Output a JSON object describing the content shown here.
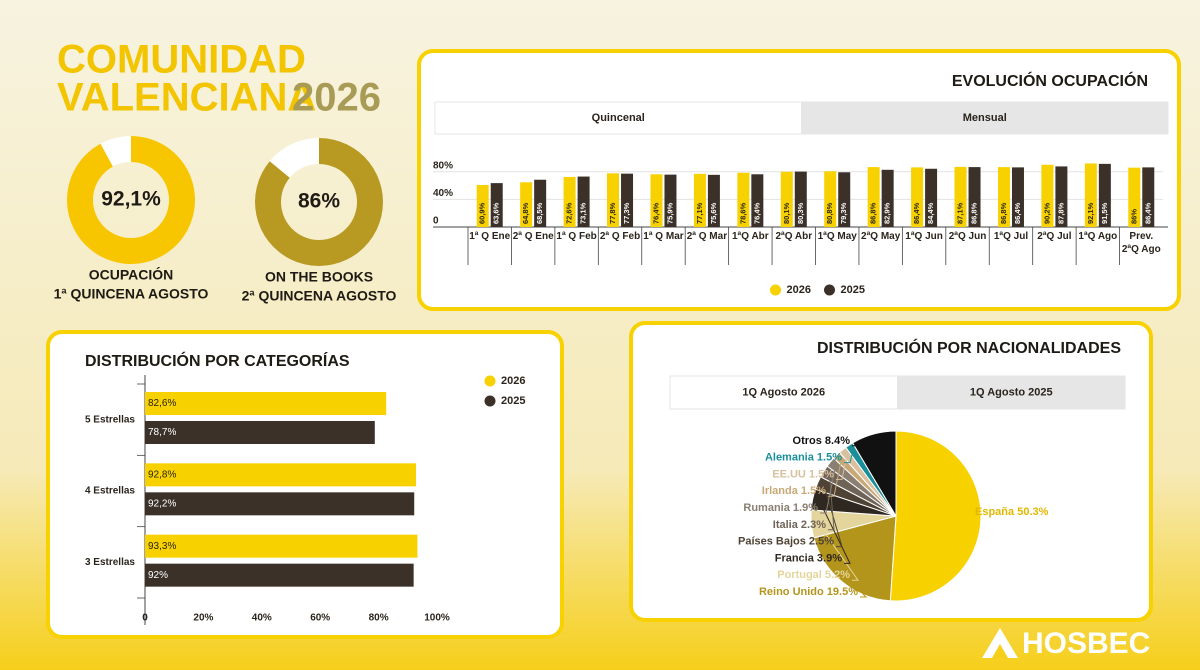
{
  "header": {
    "line1": "COMUNIDAD",
    "line2": "VALENCIANA",
    "year": "2026"
  },
  "chart_data": [
    {
      "type": "donut",
      "values": [
        92.1
      ],
      "value_labels": [
        "92,1%"
      ],
      "ylim": [
        0,
        100
      ],
      "color": "#f7c600",
      "caption": [
        "OCUPACIÓN",
        "1ª QUINCENA AGOSTO"
      ]
    },
    {
      "type": "donut",
      "values": [
        86
      ],
      "value_labels": [
        "86%"
      ],
      "ylim": [
        0,
        100
      ],
      "color": "#b89a22",
      "caption": [
        "ON THE BOOKS",
        "2ª QUINCENA AGOSTO"
      ]
    },
    {
      "type": "bar",
      "title": "EVOLUCIÓN OCUPACIÓN",
      "tabs": [
        "Quincenal",
        "Mensual"
      ],
      "categories": [
        "1ª Q Ene",
        "2ª Q Ene",
        "1ª Q Feb",
        "2ª Q Feb",
        "1ª Q Mar",
        "2ª Q Mar",
        "1ªQ Abr",
        "2ªQ Abr",
        "1ªQ May",
        "2ªQ May",
        "1ªQ Jun",
        "2ªQ Jun",
        "1ªQ Jul",
        "2ªQ Jul",
        "1ªQ Ago",
        "Prev. 2ªQ Ago"
      ],
      "series": [
        {
          "name": "2026",
          "color": "#f7d100",
          "values": [
            60.9,
            64.8,
            72.6,
            77.8,
            76.4,
            77.1,
            78.6,
            80.1,
            80.8,
            86.8,
            86.4,
            87.1,
            86.8,
            90.2,
            92.1,
            86
          ],
          "value_labels": [
            "60,9%",
            "64,8%",
            "72,6%",
            "77,8%",
            "76,4%",
            "77,1%",
            "78,6%",
            "80,1%",
            "80,8%",
            "86,8%",
            "86,4%",
            "87,1%",
            "86,8%",
            "90,2%",
            "92,1%",
            "86%"
          ]
        },
        {
          "name": "2025",
          "color": "#3b3129",
          "values": [
            63.6,
            68.5,
            73.1,
            77.3,
            75.9,
            75.6,
            76.4,
            80.3,
            79.3,
            82.9,
            84.4,
            86.8,
            86.4,
            87.8,
            91.5,
            86.4
          ],
          "value_labels": [
            "63,6%",
            "68,5%",
            "73,1%",
            "77,3%",
            "75,9%",
            "75,6%",
            "76,4%",
            "80,3%",
            "79,3%",
            "82,9%",
            "84,4%",
            "86,8%",
            "86,4%",
            "87,8%",
            "91,5%",
            "86,4%"
          ]
        }
      ],
      "ylim": [
        0,
        100
      ],
      "yticks": [
        0,
        {
          "value": 40,
          "label": "40%"
        },
        {
          "value": 80,
          "label": "80%"
        }
      ],
      "grid": true,
      "legend": "bottom"
    },
    {
      "type": "hbar",
      "title": "DISTRIBUCIÓN POR CATEGORÍAS",
      "categories": [
        "5 Estrellas",
        "4 Estrellas",
        "3 Estrellas"
      ],
      "series": [
        {
          "name": "2026",
          "color": "#f7d100",
          "values": [
            82.6,
            92.8,
            93.3
          ],
          "value_labels": [
            "82,6%",
            "92,8%",
            "93,3%"
          ]
        },
        {
          "name": "2025",
          "color": "#3b3129",
          "values": [
            78.7,
            92.2,
            92
          ],
          "value_labels": [
            "78,7%",
            "92,2%",
            "92%"
          ]
        }
      ],
      "xlim": [
        0,
        100
      ],
      "xticks": [
        0,
        {
          "value": 20,
          "label": "20%"
        },
        {
          "value": 40,
          "label": "40%"
        },
        {
          "value": 60,
          "label": "60%"
        },
        {
          "value": 80,
          "label": "80%"
        },
        {
          "value": 100,
          "label": "100%"
        }
      ],
      "legend": "right"
    },
    {
      "type": "pie",
      "title": "DISTRIBUCIÓN POR NACIONALIDADES",
      "tabs": [
        "1Q Agosto 2026",
        "1Q Agosto 2025"
      ],
      "categories": [
        "España",
        "Reino Unido",
        "Portugal",
        "Francia",
        "Países Bajos",
        "Italia",
        "Rumania",
        "Irlanda",
        "EE.UU",
        "Alemania",
        "Otros"
      ],
      "values": [
        50.3,
        19.5,
        5.2,
        3.9,
        2.5,
        2.3,
        1.9,
        1.5,
        1.5,
        1.5,
        8.4
      ],
      "value_labels": [
        "50.3%",
        "19.5%",
        "5.2%",
        "3.9%",
        "2.5%",
        "2.3%",
        "1.9%",
        "1.5%",
        "1.5%",
        "1.5%",
        "8.4%"
      ],
      "colors": [
        "#f7d100",
        "#b4951c",
        "#e3d59b",
        "#2f2820",
        "#4f4335",
        "#6e6356",
        "#8a7f72",
        "#c9a877",
        "#d9c0a0",
        "#1a8f9a",
        "#111111"
      ]
    }
  ],
  "logo": "HOSBEC"
}
